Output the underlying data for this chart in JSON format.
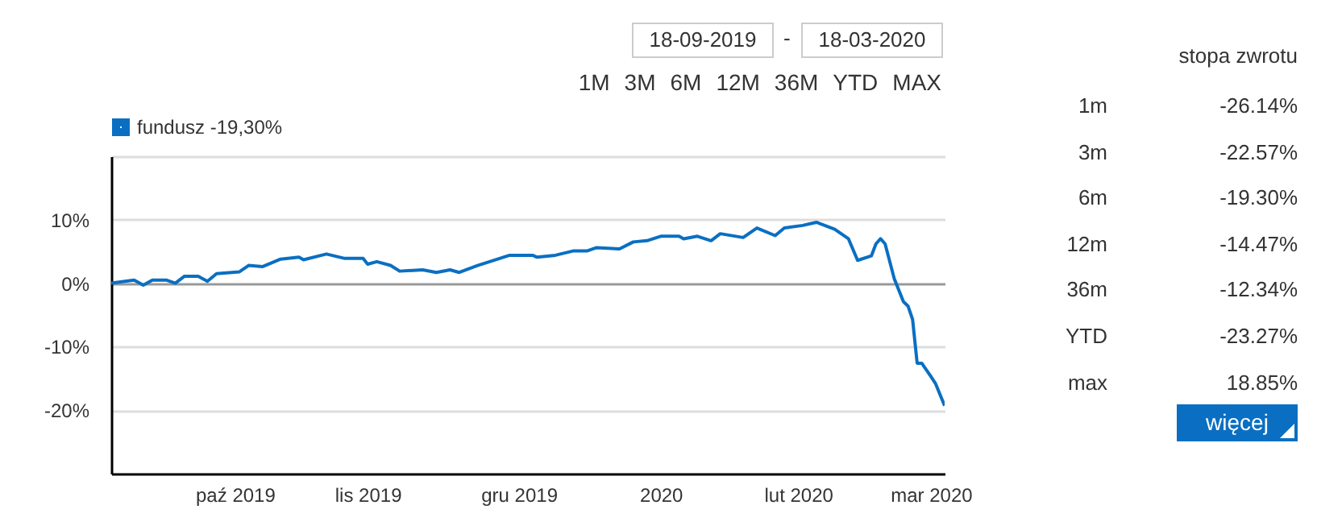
{
  "chart_data": [
    {
      "type": "line",
      "legend": "top left",
      "grid": "y",
      "marker": "none",
      "line_style": "solid",
      "xlim": [
        "2019-09-18",
        "2020-03-18"
      ],
      "xticks": [
        {
          "value": "2019-10-15",
          "label": "paź 2019"
        },
        {
          "value": "2019-11-13",
          "label": "lis 2019"
        },
        {
          "value": "2019-12-16",
          "label": "gru 2019"
        },
        {
          "value": "2020-01-16",
          "label": "2020"
        },
        {
          "value": "2020-02-15",
          "label": "lut 2020"
        },
        {
          "value": "2020-03-15",
          "label": "mar 2020"
        }
      ],
      "ylim": [
        -30,
        20
      ],
      "yticks": [
        {
          "value": 20,
          "label": null
        },
        {
          "value": 10,
          "label": "10%"
        },
        {
          "value": 0,
          "label": "0%"
        },
        {
          "value": -10,
          "label": "-10%"
        },
        {
          "value": -20,
          "label": "-20%"
        }
      ],
      "x": [
        "2019-09-18",
        "2019-09-23",
        "2019-09-25",
        "2019-09-27",
        "2019-09-30",
        "2019-10-02",
        "2019-10-04",
        "2019-10-07",
        "2019-10-09",
        "2019-10-11",
        "2019-10-16",
        "2019-10-18",
        "2019-10-21",
        "2019-10-25",
        "2019-10-29",
        "2019-10-30",
        "2019-11-04",
        "2019-11-08",
        "2019-11-12",
        "2019-11-13",
        "2019-11-15",
        "2019-11-18",
        "2019-11-20",
        "2019-11-25",
        "2019-11-28",
        "2019-12-01",
        "2019-12-03",
        "2019-12-07",
        "2019-12-11",
        "2019-12-14",
        "2019-12-19",
        "2019-12-20",
        "2019-12-24",
        "2019-12-28",
        "2019-12-31",
        "2020-01-02",
        "2020-01-07",
        "2020-01-10",
        "2020-01-13",
        "2020-01-16",
        "2020-01-20",
        "2020-01-21",
        "2020-01-24",
        "2020-01-27",
        "2020-01-29",
        "2020-02-03",
        "2020-02-06",
        "2020-02-10",
        "2020-02-12",
        "2020-02-16",
        "2020-02-19",
        "2020-02-23",
        "2020-02-26",
        "2020-02-28",
        "2020-03-02",
        "2020-03-03",
        "2020-03-04",
        "2020-03-05",
        "2020-03-07",
        "2020-03-09",
        "2020-03-10",
        "2020-03-11",
        "2020-03-12",
        "2020-03-13",
        "2020-03-15",
        "2020-03-16",
        "2020-03-18"
      ],
      "series": [
        {
          "name": "fundusz -19,30%",
          "color": "#0a6fc2",
          "values": [
            0.0,
            0.5,
            -0.3,
            0.5,
            0.5,
            0.0,
            1.1,
            1.1,
            0.3,
            1.5,
            1.8,
            2.8,
            2.6,
            3.8,
            4.1,
            3.7,
            4.6,
            3.9,
            3.9,
            3.0,
            3.4,
            2.8,
            1.9,
            2.1,
            1.7,
            2.1,
            1.7,
            2.8,
            3.7,
            4.4,
            4.4,
            4.1,
            4.4,
            5.1,
            5.1,
            5.6,
            5.4,
            6.5,
            6.7,
            7.4,
            7.4,
            7.0,
            7.4,
            6.7,
            7.8,
            7.2,
            8.7,
            7.5,
            8.7,
            9.1,
            9.6,
            8.5,
            7.0,
            3.6,
            4.3,
            6.2,
            7.0,
            6.2,
            0.7,
            -2.9,
            -3.6,
            -5.7,
            -12.6,
            -12.6,
            -14.7,
            -15.8,
            -19.3
          ]
        }
      ]
    },
    {
      "type": "other",
      "annotations": [
        "18-09-2019",
        "-",
        "18-03-2020",
        "1M",
        "3M",
        "6M",
        "12M",
        "36M",
        "YTD",
        "MAX"
      ]
    },
    {
      "type": "other",
      "title": "stopa zwrotu",
      "categories": [
        "1m",
        "3m",
        "6m",
        "12m",
        "36m",
        "YTD",
        "max"
      ],
      "value_labels": [
        "-26.14%",
        "-22.57%",
        "-19.30%",
        "-14.47%",
        "-12.34%",
        "-23.27%",
        "18.85%"
      ],
      "annotations": [
        "więcej"
      ]
    }
  ]
}
